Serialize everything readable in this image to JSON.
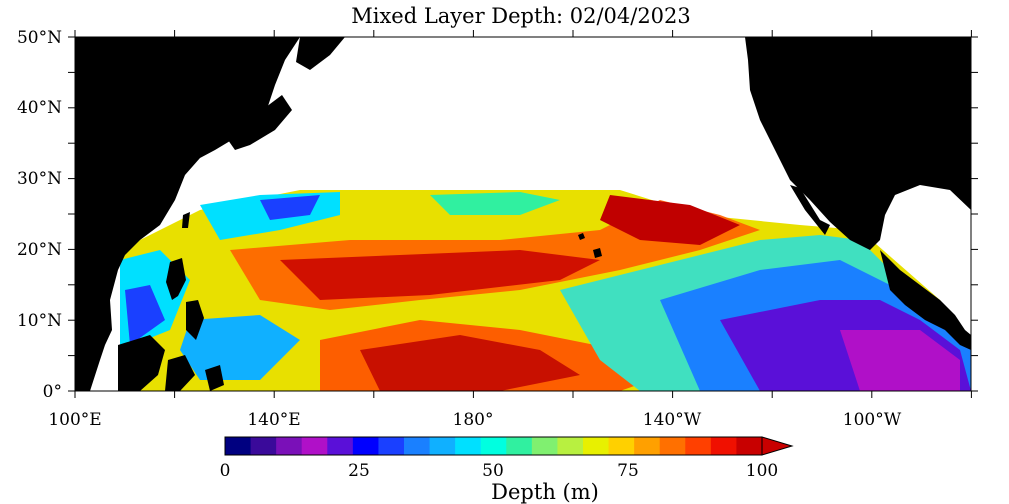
{
  "title": "Mixed Layer Depth: 02/04/2023",
  "lat_labels": [
    "50°N",
    "40°N",
    "30°N",
    "20°N",
    "10°N",
    "0°"
  ],
  "lon_labels": [
    "100°E",
    "140°E",
    "180°",
    "140°W",
    "100°W"
  ],
  "colorbar": {
    "label": "Depth (m)",
    "tick_labels": [
      "0",
      "25",
      "50",
      "75",
      "100"
    ],
    "colors": [
      "#000080",
      "#3a0a9a",
      "#7a10b8",
      "#b010c8",
      "#5a10d8",
      "#0000ff",
      "#1a40ff",
      "#1a80ff",
      "#10b0ff",
      "#00e0ff",
      "#00ffe0",
      "#30f0a0",
      "#80f070",
      "#b8f040",
      "#e8f000",
      "#ffd000",
      "#ffa000",
      "#ff7000",
      "#ff4000",
      "#f01000",
      "#c80000"
    ],
    "overflow_color": "#c80000"
  },
  "colors": {
    "land": "#000000",
    "no_data": "#ffffff",
    "frame": "#000000"
  }
}
